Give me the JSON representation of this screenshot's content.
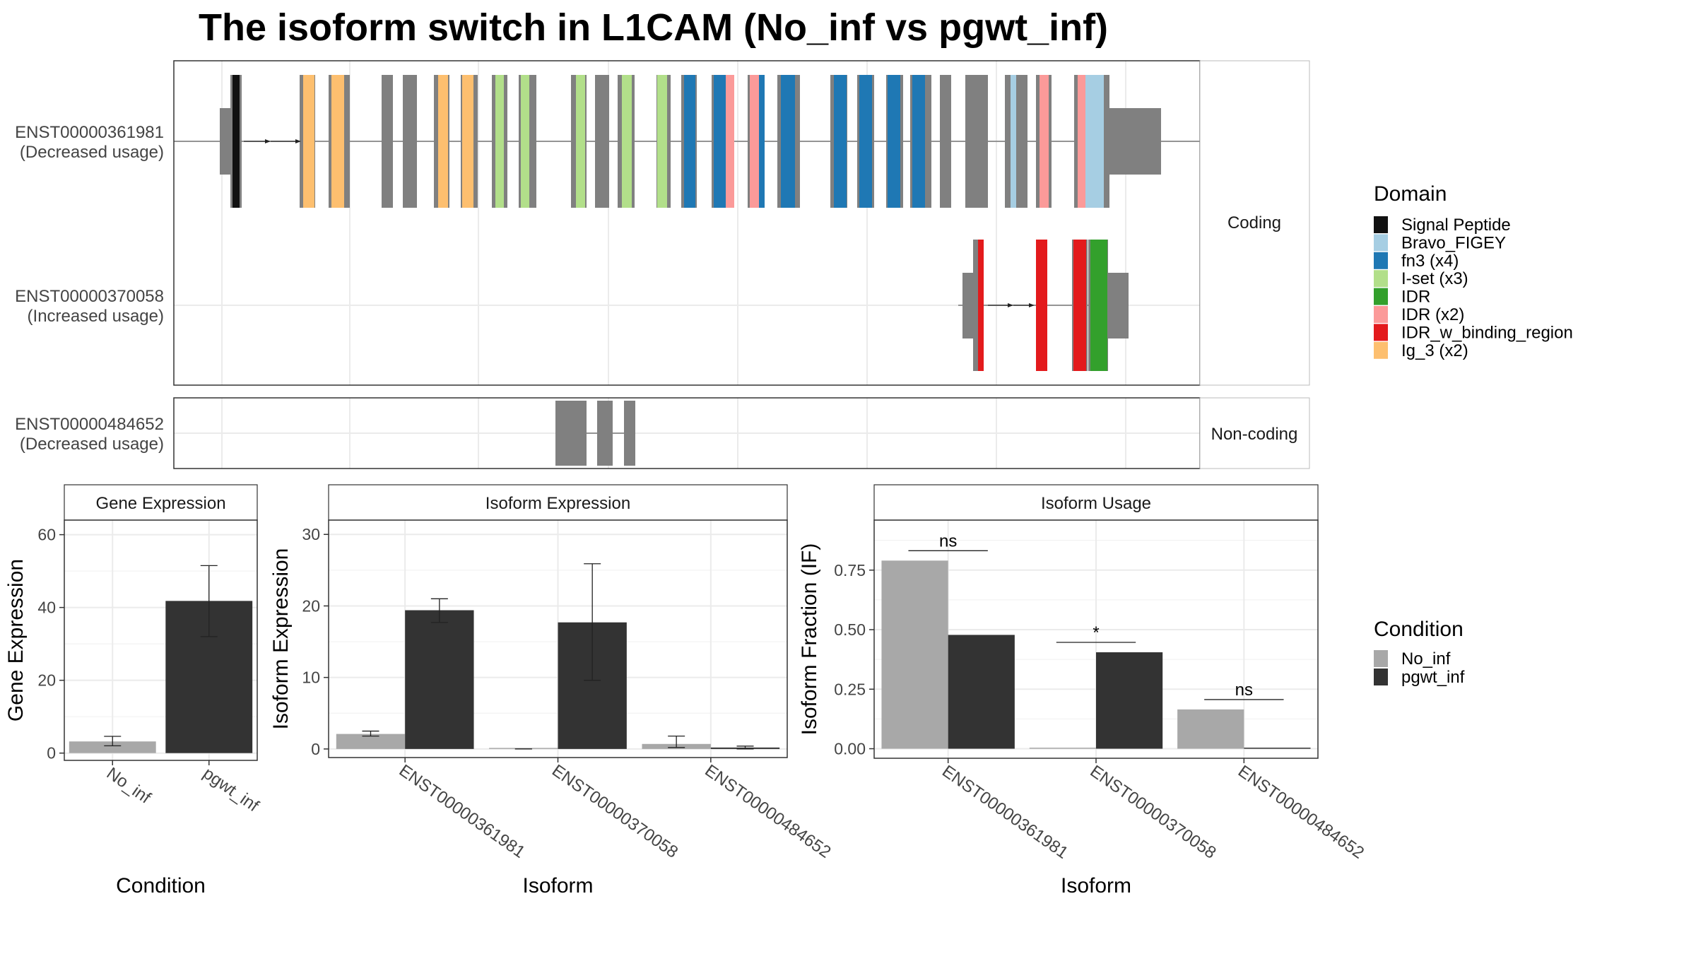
{
  "title": "The isoform switch in L1CAM (No_inf vs pgwt_inf)",
  "colors": {
    "exon": "#808080",
    "no_inf": "#A8A8A8",
    "pgwt_inf": "#333333",
    "grid": "#EBEBEB"
  },
  "isoforms": [
    {
      "id": "ENST00000361981",
      "usage": "(Decreased usage)"
    },
    {
      "id": "ENST00000370058",
      "usage": "(Increased usage)"
    },
    {
      "id": "ENST00000484652",
      "usage": "(Decreased usage)"
    }
  ],
  "facets": {
    "coding": "Coding",
    "noncoding": "Non-coding"
  },
  "domain_legend": {
    "title": "Domain",
    "items": [
      {
        "label": "Signal Peptide",
        "color": "#111111"
      },
      {
        "label": "Bravo_FIGEY",
        "color": "#A6CEE3"
      },
      {
        "label": "fn3 (x4)",
        "color": "#1F78B4"
      },
      {
        "label": "I-set (x3)",
        "color": "#B2DF8A"
      },
      {
        "label": "IDR",
        "color": "#33A02C"
      },
      {
        "label": "IDR (x2)",
        "color": "#FB9A99"
      },
      {
        "label": "IDR_w_binding_region",
        "color": "#E31A1C"
      },
      {
        "label": "Ig_3 (x2)",
        "color": "#FDBF6F"
      }
    ]
  },
  "condition_legend": {
    "title": "Condition",
    "items": [
      {
        "label": "No_inf",
        "color": "#A8A8A8"
      },
      {
        "label": "pgwt_inf",
        "color": "#333333"
      }
    ]
  },
  "chart_data": [
    {
      "type": "bar",
      "title": "Gene Expression",
      "xlabel": "Condition",
      "ylabel": "Gene Expression",
      "categories": [
        "No_inf",
        "pgwt_inf"
      ],
      "values": [
        3.2,
        41.8
      ],
      "errors": [
        [
          2.0,
          4.6
        ],
        [
          32.0,
          51.5
        ]
      ],
      "ylim": [
        -2,
        64
      ],
      "yticks": [
        0,
        20,
        40,
        60
      ],
      "ytick_labels": [
        "0",
        "20",
        "40",
        "60"
      ]
    },
    {
      "type": "bar",
      "title": "Isoform Expression",
      "xlabel": "Isoform",
      "ylabel": "Isoform Expression",
      "categories": [
        "ENST00000361981",
        "ENST00000370058",
        "ENST00000484652"
      ],
      "series": [
        {
          "name": "No_inf",
          "values": [
            2.1,
            0.0,
            0.7
          ],
          "errors": [
            [
              1.8,
              2.5
            ],
            [
              0.0,
              0.0
            ],
            [
              0.2,
              1.8
            ]
          ]
        },
        {
          "name": "pgwt_inf",
          "values": [
            19.4,
            17.7,
            0.2
          ],
          "errors": [
            [
              17.7,
              21.0
            ],
            [
              9.6,
              25.9
            ],
            [
              0.0,
              0.4
            ]
          ]
        }
      ],
      "ylim": [
        -1.2,
        32
      ],
      "yticks": [
        0,
        10,
        20,
        30
      ],
      "ytick_labels": [
        "0",
        "10",
        "20",
        "30"
      ]
    },
    {
      "type": "bar",
      "title": "Isoform Usage",
      "xlabel": "Isoform",
      "ylabel": "Isoform Fraction (IF)",
      "categories": [
        "ENST00000361981",
        "ENST00000370058",
        "ENST00000484652"
      ],
      "series": [
        {
          "name": "No_inf",
          "values": [
            0.79,
            0.0,
            0.165
          ]
        },
        {
          "name": "pgwt_inf",
          "values": [
            0.478,
            0.405,
            0.0
          ]
        }
      ],
      "significance": [
        "ns",
        "*",
        "ns"
      ],
      "ylim": [
        -0.04,
        0.96
      ],
      "yticks": [
        0,
        0.25,
        0.5,
        0.75
      ],
      "ytick_labels": [
        "0.00",
        "0.25",
        "0.50",
        "0.75"
      ]
    }
  ]
}
